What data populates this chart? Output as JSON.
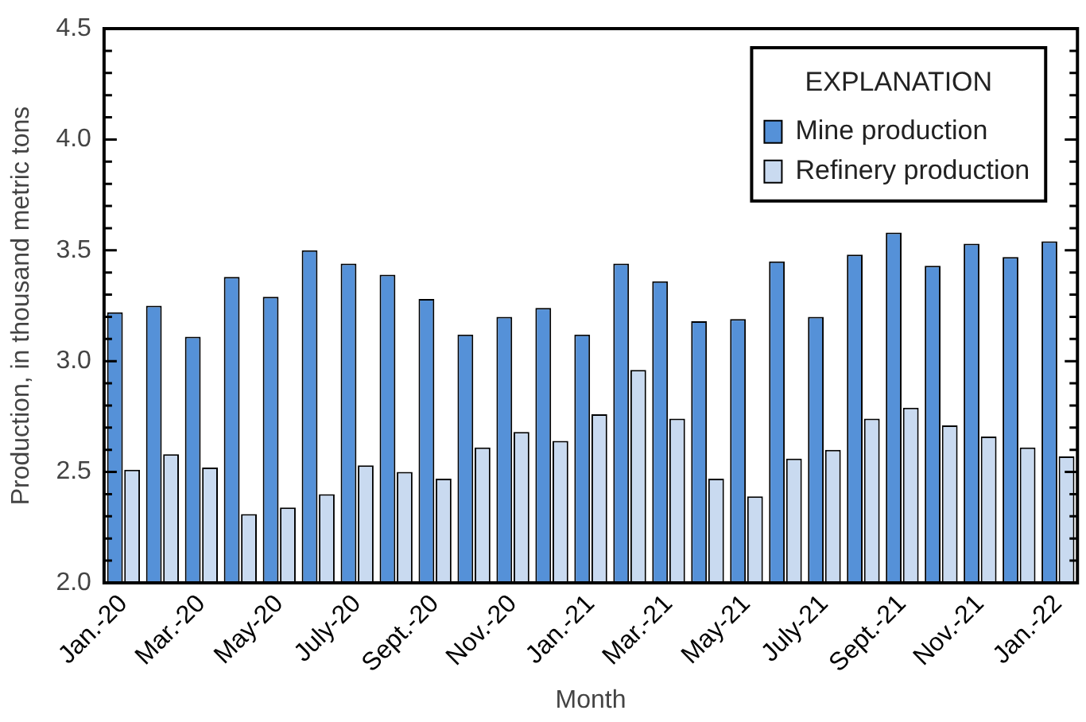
{
  "chart_data": {
    "type": "bar",
    "xlabel": "Month",
    "ylabel": "Production, in thousand metric tons",
    "legend_title": "EXPLANATION",
    "legend": "top right",
    "grid": false,
    "categories": [
      "Jan.-20",
      null,
      "Mar.-20",
      null,
      "May-20",
      null,
      "July-20",
      null,
      "Sept.-20",
      null,
      "Nov.-20",
      null,
      "Jan.-21",
      null,
      "Mar.-21",
      null,
      "May-21",
      null,
      "July-21",
      null,
      "Sept.-21",
      null,
      "Nov.-21",
      null,
      "Jan.-22"
    ],
    "series": [
      {
        "name": "Mine production",
        "color": "#5591d8",
        "values": [
          3.22,
          3.25,
          3.11,
          3.38,
          3.29,
          3.5,
          3.44,
          3.39,
          3.28,
          3.12,
          3.2,
          3.24,
          3.12,
          3.44,
          3.36,
          3.18,
          3.19,
          3.45,
          3.2,
          3.48,
          3.58,
          3.43,
          3.53,
          3.47,
          3.54
        ]
      },
      {
        "name": "Refinery production",
        "color": "#c9daf0",
        "values": [
          2.51,
          2.58,
          2.52,
          2.31,
          2.34,
          2.4,
          2.53,
          2.5,
          2.47,
          2.61,
          2.68,
          2.64,
          2.76,
          2.96,
          2.74,
          2.47,
          2.39,
          2.56,
          2.6,
          2.74,
          2.79,
          2.71,
          2.66,
          2.61,
          2.57
        ]
      }
    ],
    "ylim": [
      2.0,
      4.5
    ],
    "yticks": [
      "2.0",
      {
        "value": 2.1,
        "label": null
      },
      {
        "value": 2.2,
        "label": null
      },
      {
        "value": 2.3,
        "label": null
      },
      {
        "value": 2.4,
        "label": null
      },
      {
        "value": 2.5,
        "label": "2.5"
      },
      {
        "value": 2.6,
        "label": null
      },
      {
        "value": 2.7,
        "label": null
      },
      {
        "value": 2.8,
        "label": null
      },
      {
        "value": 2.9,
        "label": null
      },
      {
        "value": 3.0,
        "label": "3.0"
      },
      {
        "value": 3.1,
        "label": null
      },
      {
        "value": 3.2,
        "label": null
      },
      {
        "value": 3.3,
        "label": null
      },
      {
        "value": 3.4,
        "label": null
      },
      {
        "value": 3.5,
        "label": "3.5"
      },
      {
        "value": 3.6,
        "label": null
      },
      {
        "value": 3.7,
        "label": null
      },
      {
        "value": 3.8,
        "label": null
      },
      {
        "value": 3.9,
        "label": null
      },
      {
        "value": 4.0,
        "label": "4.0"
      },
      {
        "value": 4.1,
        "label": null
      },
      {
        "value": 4.2,
        "label": null
      },
      {
        "value": 4.3,
        "label": null
      },
      {
        "value": 4.4,
        "label": null
      },
      {
        "value": 4.5,
        "label": "4.5"
      }
    ]
  }
}
